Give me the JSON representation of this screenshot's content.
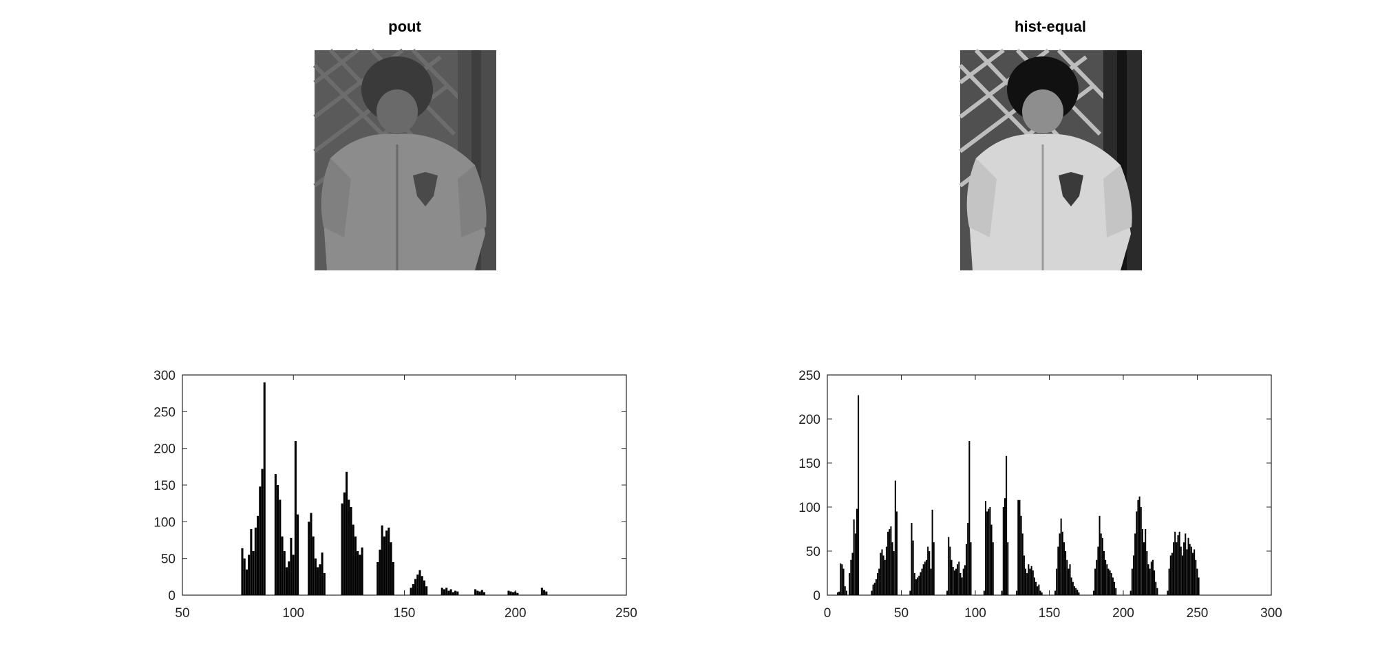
{
  "figure": {
    "panels": [
      {
        "title": "pout",
        "kind": "image",
        "tone": "low-contrast grayscale photo of a child in a jacket in front of a lattice fence"
      },
      {
        "title": "hist-equal",
        "kind": "image",
        "tone": "high-contrast (equalized) grayscale photo of the same child"
      }
    ]
  },
  "chart_data": [
    {
      "type": "bar",
      "title": "",
      "xlabel": "",
      "ylabel": "",
      "xlim": [
        50,
        250
      ],
      "ylim": [
        0,
        300
      ],
      "xticks": [
        "50",
        "100",
        "150",
        "200",
        "250"
      ],
      "yticks": [
        "0",
        "50",
        "100",
        "150",
        "200",
        "250",
        "300"
      ],
      "grid": false,
      "series": [
        {
          "x": [
            77,
            78,
            79,
            80,
            81,
            82,
            83,
            84,
            85,
            86,
            87,
            92,
            93,
            94,
            95,
            96,
            97,
            98,
            99,
            100,
            101,
            102,
            107,
            108,
            109,
            110,
            111,
            112,
            113,
            114,
            122,
            123,
            124,
            125,
            126,
            127,
            128,
            129,
            130,
            131,
            138,
            139,
            140,
            141,
            142,
            143,
            144,
            145,
            153,
            154,
            155,
            156,
            157,
            158,
            159,
            160,
            167,
            168,
            169,
            170,
            171,
            172,
            173,
            174,
            182,
            183,
            184,
            185,
            186,
            197,
            198,
            199,
            200,
            201,
            212,
            213,
            214
          ],
          "values": [
            64,
            50,
            35,
            55,
            90,
            60,
            92,
            108,
            148,
            172,
            290,
            165,
            150,
            130,
            80,
            60,
            38,
            46,
            78,
            55,
            210,
            110,
            100,
            112,
            80,
            50,
            38,
            42,
            58,
            30,
            125,
            140,
            168,
            130,
            120,
            96,
            80,
            60,
            55,
            65,
            45,
            62,
            95,
            80,
            88,
            92,
            72,
            45,
            10,
            15,
            22,
            28,
            34,
            26,
            20,
            12,
            10,
            8,
            10,
            6,
            8,
            4,
            6,
            5,
            8,
            6,
            5,
            7,
            4,
            6,
            5,
            4,
            5,
            3,
            10,
            7,
            5
          ]
        }
      ]
    },
    {
      "type": "bar",
      "title": "",
      "xlabel": "",
      "ylabel": "",
      "xlim": [
        0,
        300
      ],
      "ylim": [
        0,
        250
      ],
      "xticks": [
        "0",
        "50",
        "100",
        "150",
        "200",
        "250",
        "300"
      ],
      "yticks": [
        "0",
        "50",
        "100",
        "150",
        "200",
        "250"
      ],
      "grid": false,
      "series": [
        {
          "x": [
            7,
            8,
            9,
            10,
            11,
            12,
            13,
            15,
            16,
            17,
            18,
            19,
            20,
            21,
            30,
            31,
            32,
            33,
            34,
            35,
            36,
            37,
            38,
            39,
            40,
            41,
            42,
            43,
            44,
            45,
            46,
            47,
            56,
            57,
            58,
            59,
            60,
            61,
            62,
            63,
            64,
            65,
            66,
            67,
            68,
            69,
            70,
            71,
            72,
            81,
            82,
            83,
            84,
            85,
            86,
            87,
            88,
            89,
            90,
            91,
            92,
            93,
            94,
            95,
            96,
            97,
            106,
            107,
            108,
            109,
            110,
            111,
            112,
            118,
            119,
            120,
            121,
            122,
            128,
            129,
            130,
            131,
            132,
            133,
            134,
            135,
            136,
            137,
            138,
            139,
            140,
            141,
            142,
            143,
            144,
            145,
            154,
            155,
            156,
            157,
            158,
            159,
            160,
            161,
            162,
            163,
            164,
            165,
            166,
            167,
            168,
            169,
            170,
            180,
            181,
            182,
            183,
            184,
            185,
            186,
            187,
            188,
            189,
            190,
            191,
            192,
            193,
            194,
            195,
            205,
            206,
            207,
            208,
            209,
            210,
            211,
            212,
            213,
            214,
            215,
            216,
            217,
            218,
            219,
            220,
            221,
            222,
            223,
            230,
            231,
            232,
            233,
            234,
            235,
            236,
            237,
            238,
            239,
            240,
            241,
            242,
            243,
            244,
            245,
            246,
            247,
            248,
            249,
            250,
            251
          ],
          "values": [
            3,
            4,
            36,
            35,
            30,
            10,
            5,
            25,
            40,
            48,
            86,
            70,
            98,
            227,
            5,
            12,
            14,
            18,
            25,
            30,
            48,
            52,
            45,
            40,
            55,
            72,
            75,
            78,
            60,
            50,
            130,
            95,
            5,
            82,
            62,
            25,
            18,
            20,
            22,
            26,
            30,
            35,
            38,
            40,
            55,
            50,
            30,
            97,
            60,
            5,
            66,
            55,
            40,
            32,
            28,
            30,
            35,
            38,
            25,
            20,
            30,
            34,
            58,
            82,
            175,
            60,
            5,
            107,
            95,
            98,
            100,
            80,
            60,
            5,
            100,
            110,
            158,
            60,
            5,
            108,
            108,
            90,
            70,
            45,
            30,
            25,
            35,
            30,
            33,
            28,
            20,
            15,
            10,
            12,
            5,
            3,
            5,
            30,
            55,
            70,
            87,
            72,
            60,
            50,
            40,
            30,
            35,
            20,
            15,
            10,
            8,
            6,
            3,
            5,
            30,
            40,
            55,
            90,
            70,
            65,
            50,
            40,
            35,
            30,
            28,
            25,
            20,
            15,
            8,
            5,
            30,
            45,
            70,
            95,
            108,
            112,
            100,
            75,
            60,
            75,
            50,
            35,
            30,
            38,
            40,
            28,
            15,
            8,
            5,
            30,
            45,
            48,
            60,
            72,
            60,
            68,
            72,
            55,
            45,
            60,
            70,
            52,
            65,
            58,
            55,
            48,
            52,
            40,
            30,
            20
          ]
        }
      ]
    }
  ]
}
